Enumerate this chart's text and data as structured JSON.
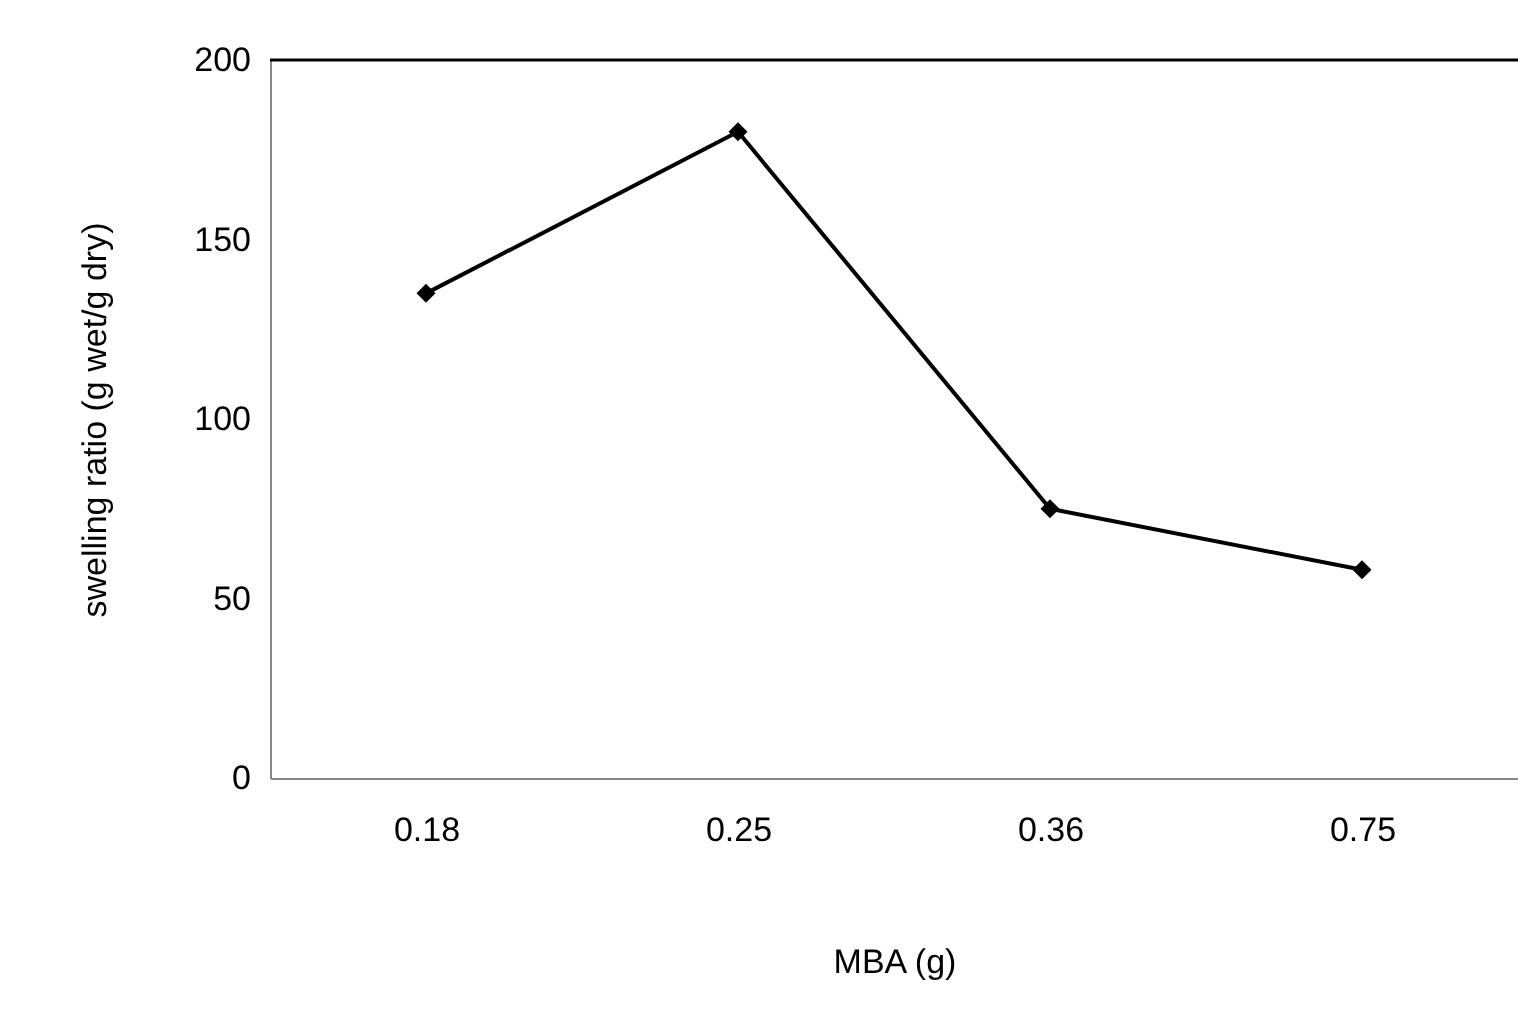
{
  "chart_data": {
    "type": "line",
    "xlabel": "MBA (g)",
    "ylabel": "swelling ratio (g wet/g dry)",
    "categories": [
      "0.18",
      "0.25",
      "0.36",
      "0.75"
    ],
    "series": [
      {
        "color": "#000000",
        "values": [
          135,
          180,
          75,
          58
        ]
      }
    ],
    "ylim": [
      0,
      200
    ],
    "yticks": [
      0,
      50,
      100,
      150,
      200
    ],
    "grid": false,
    "marker": "diamond",
    "line_style": "solid",
    "ref_lines": [
      {
        "axis": "y",
        "value": 200,
        "color": "#000000"
      }
    ]
  }
}
